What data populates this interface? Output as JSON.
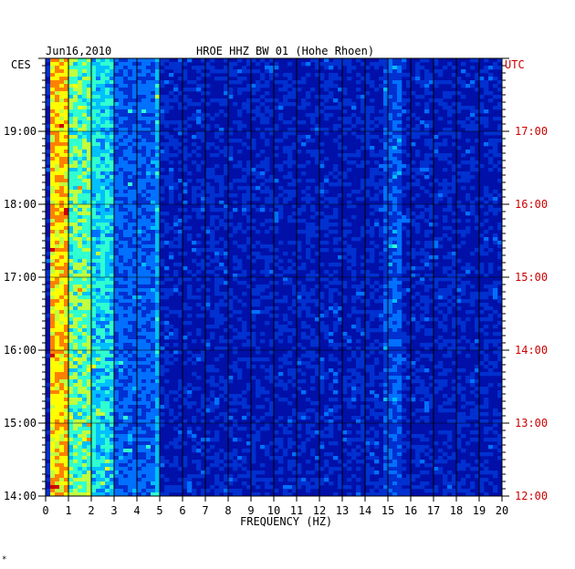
{
  "header": {
    "date": "Jun16,2010",
    "station": "HROE HHZ BW 01 (Hohe Rhoen)",
    "left_zone": "CES",
    "right_zone": "UTC"
  },
  "footer": {
    "mark": "*"
  },
  "chart_data": {
    "type": "heatmap",
    "title": "HROE HHZ BW 01 (Hohe Rhoen)",
    "xlabel": "FREQUENCY (HZ)",
    "ylabel": "",
    "xlim": [
      0,
      20
    ],
    "x_ticks": [
      "0",
      "1",
      "2",
      "3",
      "4",
      "5",
      "6",
      "7",
      "8",
      "9",
      "10",
      "11",
      "12",
      "13",
      "14",
      "15",
      "16",
      "17",
      "18",
      "19",
      "20"
    ],
    "ylim_local": [
      "14:00",
      "20:00"
    ],
    "y_ticks_left": [
      "19:00",
      "18:00",
      "17:00",
      "16:00",
      "15:00",
      "14:00"
    ],
    "y_ticks_right": [
      "17:00",
      "16:00",
      "15:00",
      "14:00",
      "13:00",
      "12:00"
    ],
    "grid": true,
    "colormap": [
      "#0000a0",
      "#0030d0",
      "#0070ff",
      "#00c0ff",
      "#30ffd0",
      "#c0ff40",
      "#ffff00",
      "#ff8000",
      "#d00000"
    ],
    "background_color": "#0010a8",
    "bands": [
      {
        "freq": [
          0.2,
          1.0
        ],
        "level": "very high"
      },
      {
        "freq": [
          1.0,
          3.0
        ],
        "level": "high"
      },
      {
        "freq": [
          3.0,
          5.0
        ],
        "level": "medium"
      },
      {
        "freq": [
          14.8,
          15.6
        ],
        "level": "low-medium"
      },
      {
        "freq": [
          4.8,
          5.0
        ],
        "level": "medium",
        "note": "narrow line"
      }
    ]
  }
}
